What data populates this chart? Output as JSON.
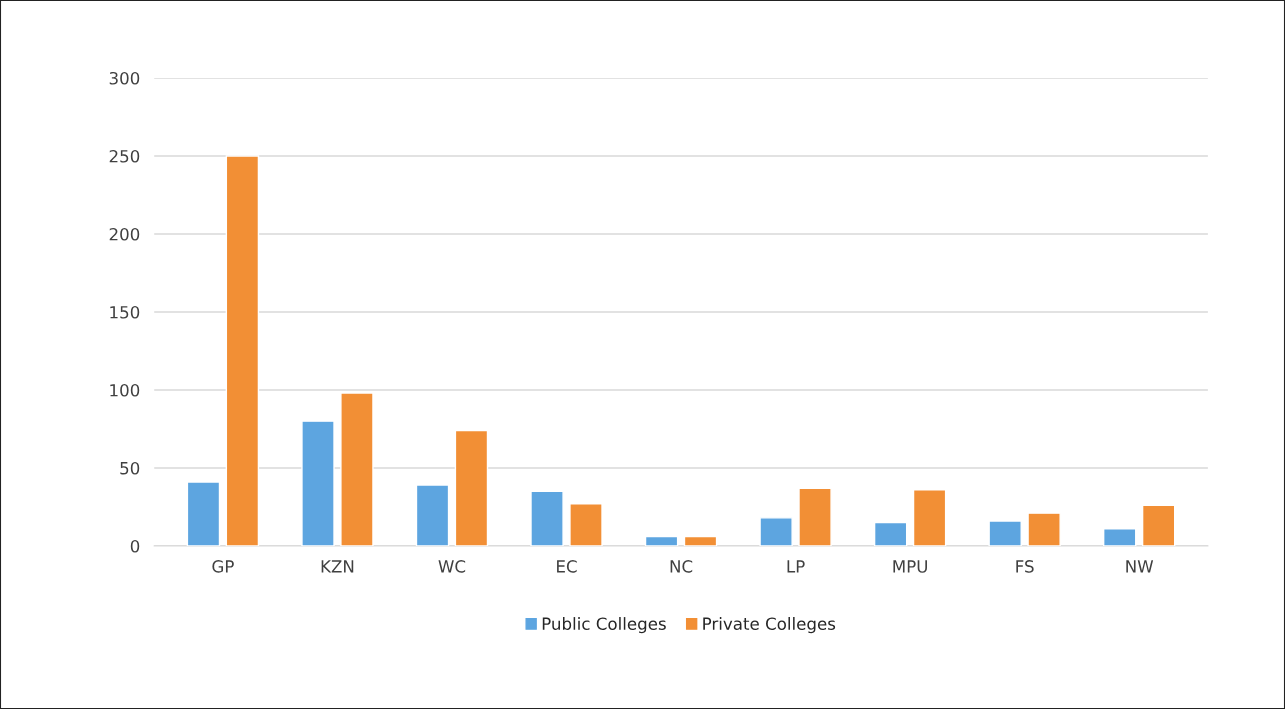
{
  "chart_data": {
    "type": "bar",
    "categories": [
      "GP",
      "KZN",
      "WC",
      "EC",
      "NC",
      "LP",
      "MPU",
      "FS",
      "NW"
    ],
    "series": [
      {
        "name": "Public Colleges",
        "color": "#5da5e0",
        "values": [
          41,
          80,
          39,
          35,
          6,
          18,
          15,
          16,
          11
        ]
      },
      {
        "name": "Private Colleges",
        "color": "#f28f35",
        "values": [
          250,
          98,
          74,
          27,
          6,
          37,
          36,
          21,
          26
        ]
      }
    ],
    "ylim": [
      0,
      300
    ],
    "yticks": [
      0,
      50,
      100,
      150,
      200,
      250,
      300
    ],
    "grid": "y",
    "legend": "bottom"
  }
}
